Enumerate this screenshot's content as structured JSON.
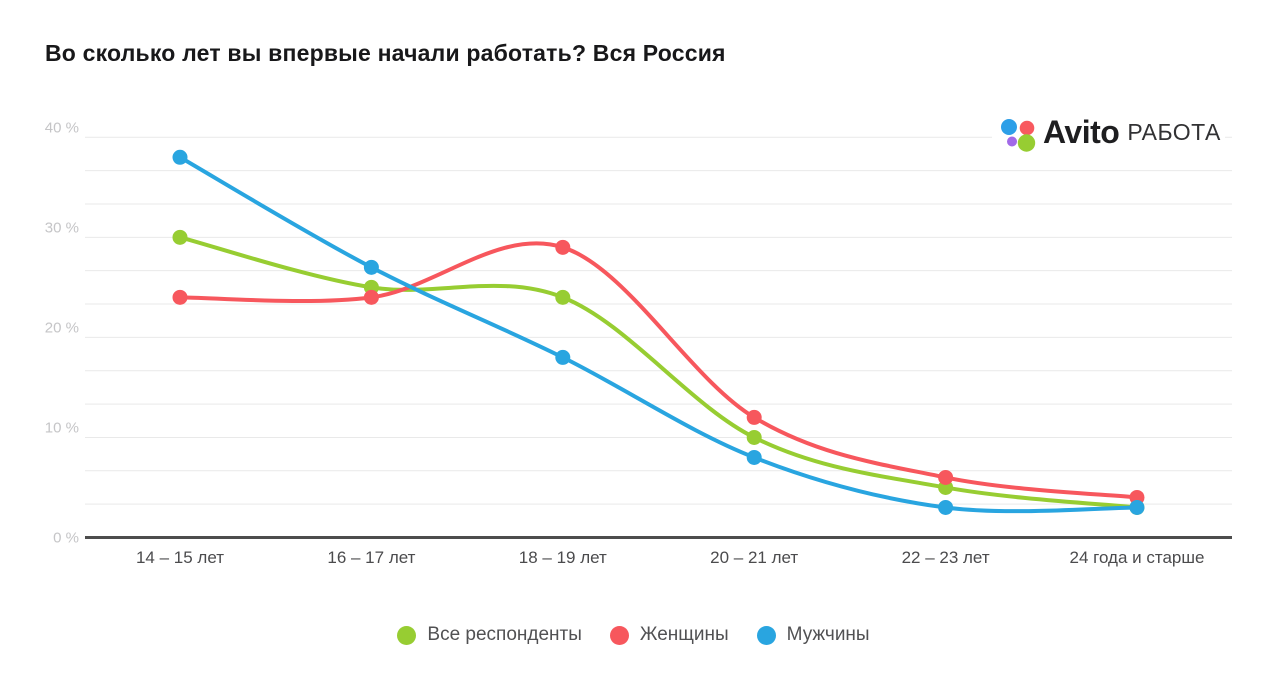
{
  "title": "Во сколько лет вы впервые начали работать? Вся Россия",
  "logo": {
    "brand": "Avito",
    "suffix": "РАБОТА",
    "dot_colors": {
      "blue": "#2D9FE8",
      "red": "#F8595F",
      "purple": "#A169E8",
      "green": "#97CD32"
    }
  },
  "chart_data": {
    "type": "line",
    "categories": [
      "14 – 15 лет",
      "16 – 17 лет",
      "18 – 19 лет",
      "20 – 21 лет",
      "22 – 23 лет",
      "24 года и старше"
    ],
    "series": [
      {
        "key": "all-respondents",
        "name": "Все респонденты",
        "color": "#97CD32",
        "values": [
          30,
          25,
          24,
          10,
          5,
          3
        ]
      },
      {
        "key": "women",
        "name": "Женщины",
        "color": "#F7575D",
        "values": [
          24,
          24,
          29,
          12,
          6,
          4
        ]
      },
      {
        "key": "men",
        "name": "Мужчины",
        "color": "#29A5E0",
        "values": [
          38,
          27,
          18,
          8,
          3,
          3
        ]
      }
    ],
    "y_ticks": [
      "0 %",
      "10 %",
      "20 %",
      "30 %",
      "40 %"
    ],
    "y_tick_values": [
      0,
      10,
      20,
      30,
      40
    ],
    "ylim": [
      0,
      40
    ],
    "grid_minor_step_pct": 3.3333,
    "grid": "horizontal-only",
    "legend_position": "bottom",
    "xlabel": "",
    "ylabel": ""
  },
  "colors": {
    "gridline": "#E9E9E9",
    "axis_line": "#4D4D4D",
    "y_tick_label": "#C5C5C7",
    "x_tick_label": "#4B4B4D",
    "legend_text": "#515153",
    "title_text": "#18181A",
    "background": "#FFFFFF"
  }
}
